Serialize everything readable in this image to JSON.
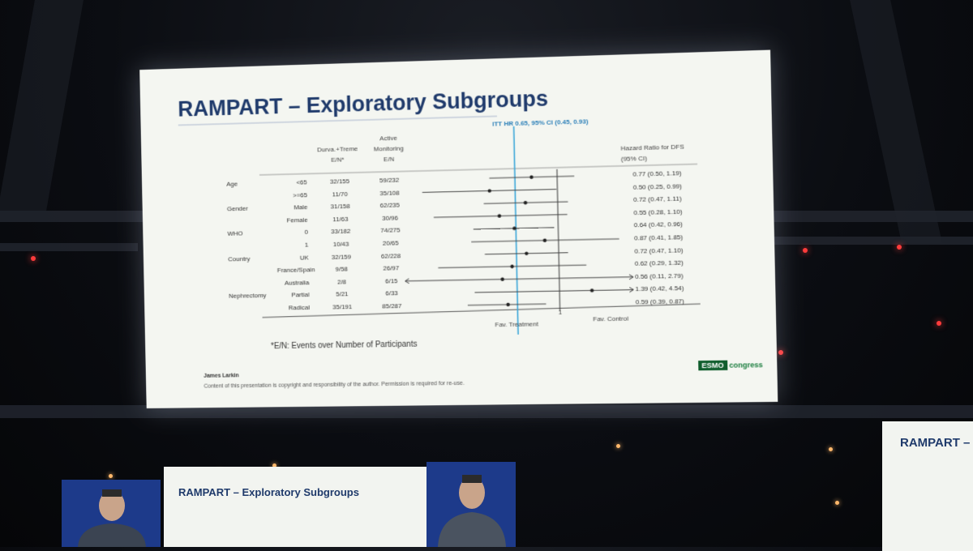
{
  "slide": {
    "title": "RAMPART – Exploratory Subgroups",
    "itt_label": "ITT HR 0.65, 95% CI (0.45, 0.93)",
    "columns": {
      "arm1_line1": "Durva.+Treme",
      "arm1_line2": "E/N*",
      "arm2_line1": "Active",
      "arm2_line2": "Monitoring",
      "arm2_line3": "E/N",
      "hr_line1": "Hazard Ratio for DFS",
      "hr_line2": "(95% CI)"
    },
    "rows": [
      {
        "group": "Age",
        "subgroup": "<65",
        "dt": "32/155",
        "am": "59/232",
        "hr_text": "0.77 (0.50, 1.19)"
      },
      {
        "group": "",
        "subgroup": ">=65",
        "dt": "11/70",
        "am": "35/108",
        "hr_text": "0.50 (0.25, 0.99)"
      },
      {
        "group": "Gender",
        "subgroup": "Male",
        "dt": "31/158",
        "am": "62/235",
        "hr_text": "0.72 (0.47, 1.11)"
      },
      {
        "group": "",
        "subgroup": "Female",
        "dt": "11/63",
        "am": "30/96",
        "hr_text": "0.55 (0.28, 1.10)"
      },
      {
        "group": "WHO",
        "subgroup": "0",
        "dt": "33/182",
        "am": "74/275",
        "hr_text": "0.64 (0.42, 0.96)"
      },
      {
        "group": "",
        "subgroup": "1",
        "dt": "10/43",
        "am": "20/65",
        "hr_text": "0.87 (0.41, 1.85)"
      },
      {
        "group": "Country",
        "subgroup": "UK",
        "dt": "32/159",
        "am": "62/228",
        "hr_text": "0.72 (0.47, 1.10)"
      },
      {
        "group": "",
        "subgroup": "France/Spain",
        "dt": "9/58",
        "am": "26/97",
        "hr_text": "0.62 (0.29, 1.32)"
      },
      {
        "group": "",
        "subgroup": "Australia",
        "dt": "2/8",
        "am": "6/15",
        "hr_text": "0.56 (0.11, 2.79)"
      },
      {
        "group": "Nephrectomy",
        "subgroup": "Partial",
        "dt": "5/21",
        "am": "6/33",
        "hr_text": "1.39 (0.42, 4.54)"
      },
      {
        "group": "",
        "subgroup": "Radical",
        "dt": "35/191",
        "am": "85/287",
        "hr_text": "0.59 (0.39, 0.87)"
      }
    ],
    "axis_tick": "1",
    "fav_treatment": "Fav. Treatment",
    "fav_control": "Fav. Control",
    "footnote": "*E/N: Events over Number of Participants",
    "presenter": "James Larkin",
    "copyright": "Content of this presentation is copyright and responsibility of the author. Permission is required for re-use.",
    "logo_text": "ESMO",
    "logo_suffix": "congress"
  },
  "chart_data": {
    "type": "forest",
    "reference_line": 1,
    "itt_hr": 0.65,
    "points": [
      {
        "hr": 0.77,
        "lo": 0.5,
        "hi": 1.19
      },
      {
        "hr": 0.5,
        "lo": 0.25,
        "hi": 0.99
      },
      {
        "hr": 0.72,
        "lo": 0.47,
        "hi": 1.11
      },
      {
        "hr": 0.55,
        "lo": 0.28,
        "hi": 1.1
      },
      {
        "hr": 0.64,
        "lo": 0.42,
        "hi": 0.96
      },
      {
        "hr": 0.87,
        "lo": 0.41,
        "hi": 1.85
      },
      {
        "hr": 0.72,
        "lo": 0.47,
        "hi": 1.1
      },
      {
        "hr": 0.62,
        "lo": 0.29,
        "hi": 1.32
      },
      {
        "hr": 0.56,
        "lo": 0.11,
        "hi": 2.79
      },
      {
        "hr": 1.39,
        "lo": 0.42,
        "hi": 4.54
      },
      {
        "hr": 0.59,
        "lo": 0.39,
        "hi": 0.87
      }
    ]
  },
  "lower_slide": {
    "title": "RAMPART – Exploratory Subgroups"
  },
  "right_slide": {
    "title": "RAMPART – Explo"
  },
  "colors": {
    "title_blue": "#1f3a6b",
    "itt_line": "#3aa6d8",
    "esmo_green": "#1a7d3e"
  }
}
